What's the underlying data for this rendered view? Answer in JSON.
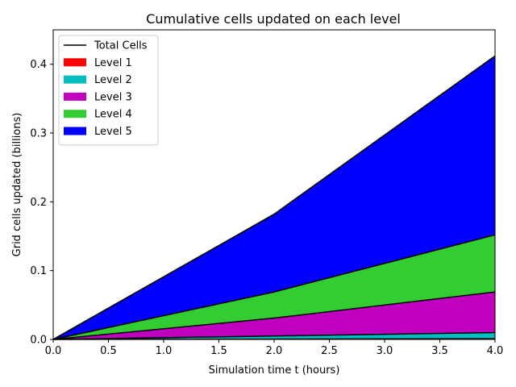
{
  "chart_data": {
    "type": "area",
    "title": "Cumulative cells updated on each level",
    "xlabel": "Simulation time t (hours)",
    "ylabel": "Grid cells updated (billions)",
    "xlim": [
      0.0,
      4.0
    ],
    "ylim": [
      0.0,
      0.45
    ],
    "xticks": [
      "0.0",
      "0.5",
      "1.0",
      "1.5",
      "2.0",
      "2.5",
      "3.0",
      "3.5",
      "4.0"
    ],
    "yticks": [
      "0.0",
      "0.1",
      "0.2",
      "0.3",
      "0.4"
    ],
    "x": [
      0.0,
      2.0,
      4.0
    ],
    "stacked": true,
    "series": [
      {
        "name": "Level 1",
        "color": "#ff0000",
        "values": [
          0.0,
          0.0005,
          0.001
        ]
      },
      {
        "name": "Level 2",
        "color": "#00bfbf",
        "values": [
          0.0,
          0.0045,
          0.009
        ]
      },
      {
        "name": "Level 3",
        "color": "#bf00bf",
        "values": [
          0.0,
          0.026,
          0.059
        ]
      },
      {
        "name": "Level 4",
        "color": "#33cc33",
        "values": [
          0.0,
          0.038,
          0.083
        ]
      },
      {
        "name": "Level 5",
        "color": "#0000ff",
        "values": [
          0.0,
          0.113,
          0.26
        ]
      }
    ],
    "total": {
      "name": "Total Cells",
      "color": "#000000",
      "values": [
        0.0,
        0.182,
        0.412
      ]
    },
    "legend": "top-left",
    "grid": false
  }
}
